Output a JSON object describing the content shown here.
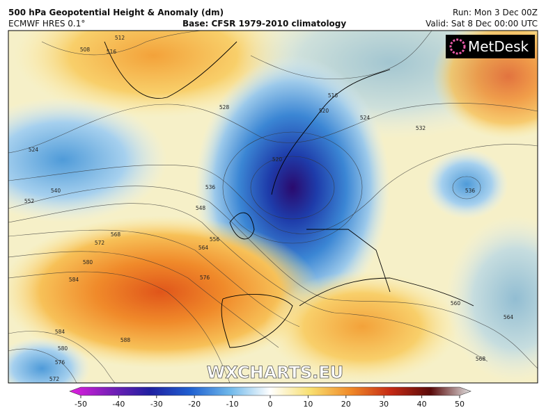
{
  "header": {
    "title": "500 hPa Geopotential Height & Anomaly (dm)",
    "model": "ECMWF HRES 0.1°",
    "base": "Base: CFSR 1979-2010 climatology",
    "run": "Run: Mon 3 Dec 00Z",
    "valid": "Valid: Sat 8 Dec 00:00 UTC"
  },
  "logo": "MetDesk",
  "watermark": "WXCHARTS.EU",
  "colorbar": {
    "range": [
      -50,
      50
    ],
    "ticks": [
      -50,
      -40,
      -30,
      -20,
      -10,
      0,
      10,
      20,
      30,
      40,
      50
    ]
  },
  "contour_labels": [
    512,
    508,
    516,
    524,
    528,
    520,
    516,
    520,
    524,
    532,
    536,
    540,
    552,
    548,
    556,
    568,
    572,
    564,
    580,
    576,
    584,
    588,
    584,
    580,
    576,
    572,
    560,
    564,
    568,
    536
  ]
}
